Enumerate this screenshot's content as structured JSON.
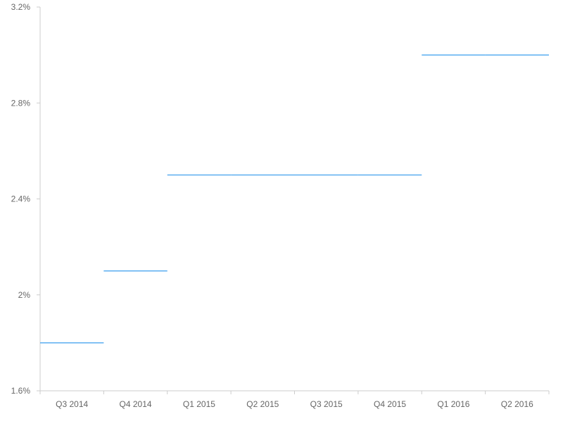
{
  "chart_data": {
    "type": "step-line",
    "title": "",
    "xlabel": "",
    "ylabel": "",
    "categories": [
      "Q3 2014",
      "Q4 2014",
      "Q1 2015",
      "Q2 2015",
      "Q3 2015",
      "Q4 2015",
      "Q1 2016",
      "Q2 2016"
    ],
    "series": [
      {
        "values": [
          1.8,
          2.1,
          2.5,
          2.5,
          2.5,
          2.5,
          3.0,
          3.0
        ]
      }
    ],
    "yticks": [
      {
        "value": 1.6,
        "label": "1.6%"
      },
      {
        "value": 2.0,
        "label": "2%"
      },
      {
        "value": 2.4,
        "label": "2.4%"
      },
      {
        "value": 2.8,
        "label": "2.8%"
      },
      {
        "value": 3.2,
        "label": "3.2%"
      }
    ],
    "ylim": [
      1.6,
      3.2
    ],
    "grid": false,
    "legend": "none",
    "colors": {
      "series": "#5aaef0",
      "axis": "#cccccc",
      "tick_text": "#666666"
    }
  }
}
